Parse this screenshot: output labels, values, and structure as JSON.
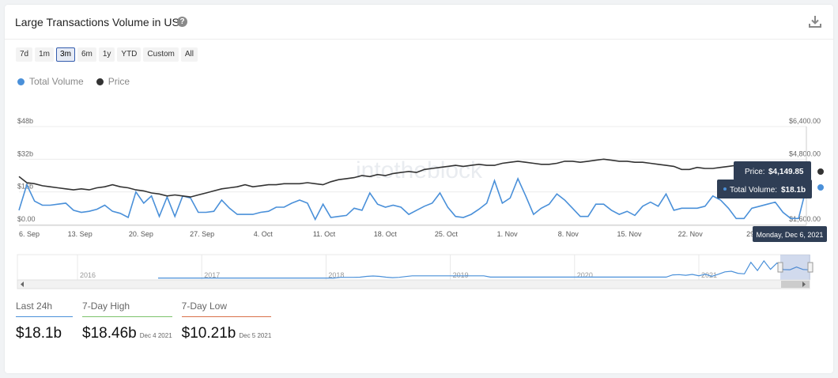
{
  "header": {
    "title": "Large Transactions Volume in USD",
    "help_icon": "question-circle-icon",
    "download_icon": "download-icon"
  },
  "ranges": [
    "7d",
    "1m",
    "3m",
    "6m",
    "1y",
    "YTD",
    "Custom",
    "All"
  ],
  "active_range": "3m",
  "legend": [
    {
      "label": "Total Volume",
      "color": "#4a90d9"
    },
    {
      "label": "Price",
      "color": "#333333"
    }
  ],
  "watermark": "intotheblock",
  "tooltip": {
    "price_label": "Price:",
    "price_value": "$4,149.85",
    "volume_label": "Total Volume:",
    "volume_value": "$18.1b",
    "date": "Monday, Dec 6, 2021"
  },
  "stats": [
    {
      "label": "Last 24h",
      "value": "$18.1b",
      "date": "",
      "color": "#4a90d9"
    },
    {
      "label": "7-Day High",
      "value": "$18.46b",
      "date": "Dec 4 2021",
      "color": "#7cc26b"
    },
    {
      "label": "7-Day Low",
      "value": "$10.21b",
      "date": "Dec 5 2021",
      "color": "#d9714a"
    }
  ],
  "chart_data": {
    "type": "line",
    "x_tick_labels": [
      "6. Sep",
      "13. Sep",
      "20. Sep",
      "27. Sep",
      "4. Oct",
      "11. Oct",
      "18. Oct",
      "25. Oct",
      "1. Nov",
      "8. Nov",
      "15. Nov",
      "22. Nov",
      "29."
    ],
    "left_axis": {
      "ticks": [
        "$0.00",
        "$16b",
        "$32b",
        "$48b"
      ],
      "range": [
        0,
        48
      ]
    },
    "right_axis": {
      "ticks": [
        "$1,600.00",
        "$4,800.00",
        "$6,400.00"
      ],
      "range": [
        1600,
        6400
      ]
    },
    "grid": true,
    "series": [
      {
        "name": "Total Volume",
        "axis": "left",
        "color": "#4a90d9",
        "values": [
          7,
          19.5,
          11.5,
          9.5,
          9.5,
          10,
          10.5,
          7,
          6,
          6.5,
          7.5,
          9.5,
          6.5,
          5.5,
          3.5,
          16,
          10.5,
          14,
          4,
          13.5,
          4,
          14,
          13,
          6,
          6,
          6.5,
          12,
          8,
          5,
          5,
          5,
          6,
          6.5,
          8.5,
          8.5,
          10.5,
          12,
          10.5,
          2.5,
          10,
          3.5,
          4,
          4.5,
          8,
          7,
          15.5,
          10,
          8.5,
          9.5,
          8.5,
          5,
          7,
          9,
          10.5,
          15.5,
          8.5,
          4,
          3.5,
          5,
          7.5,
          10.5,
          21.5,
          10.5,
          13,
          22.5,
          14,
          5,
          8,
          10,
          15,
          12,
          8,
          4,
          4,
          10,
          10,
          7,
          5,
          6.5,
          4.5,
          9,
          11,
          9,
          15,
          7,
          8,
          8,
          8,
          9,
          14,
          12,
          8,
          3,
          3,
          8,
          9,
          10,
          11,
          6,
          3,
          3,
          18.1
        ]
      },
      {
        "name": "Price",
        "axis": "right",
        "color": "#333333",
        "values": [
          3950,
          3650,
          3600,
          3500,
          3450,
          3400,
          3350,
          3300,
          3350,
          3300,
          3400,
          3450,
          3550,
          3450,
          3400,
          3300,
          3250,
          3150,
          3100,
          3000,
          3050,
          3000,
          2950,
          3050,
          3150,
          3250,
          3350,
          3400,
          3450,
          3550,
          3450,
          3500,
          3550,
          3550,
          3600,
          3600,
          3600,
          3650,
          3600,
          3550,
          3700,
          3800,
          3850,
          3900,
          4000,
          3950,
          4050,
          4000,
          4100,
          4150,
          4200,
          4150,
          4300,
          4350,
          4400,
          4450,
          4500,
          4450,
          4500,
          4550,
          4500,
          4500,
          4600,
          4650,
          4700,
          4650,
          4600,
          4550,
          4550,
          4600,
          4700,
          4700,
          4650,
          4700,
          4750,
          4800,
          4750,
          4700,
          4700,
          4650,
          4650,
          4600,
          4550,
          4500,
          4450,
          4300,
          4300,
          4400,
          4350,
          4350,
          4400,
          4450,
          4500,
          4400,
          4250,
          4200,
          4150,
          4150,
          4100,
          4150,
          4200,
          4149.85
        ]
      }
    ],
    "navigator": {
      "x_tick_labels": [
        "2016",
        "2017",
        "2018",
        "2019",
        "2020",
        "2021"
      ]
    }
  }
}
